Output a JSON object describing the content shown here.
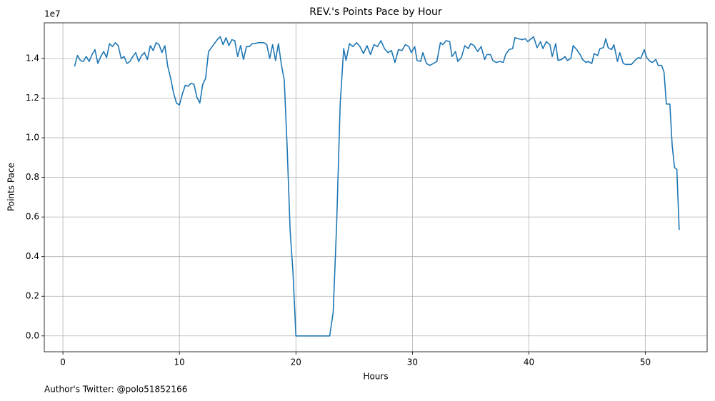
{
  "chart_data": {
    "type": "line",
    "title": "REV.'s Points Pace by Hour",
    "xlabel": "Hours",
    "ylabel": "Points Pace",
    "y_offset_label": "1e7",
    "footnote": "Author's Twitter: @polo51852166",
    "color": "#1f77b4",
    "grid": true,
    "xlim": [
      -1.6,
      55.3
    ],
    "xticks": [
      0,
      10,
      20,
      30,
      40,
      50
    ],
    "ylim": [
      -0.08,
      1.58
    ],
    "yticks": [
      {
        "value": 0,
        "label": "0.0"
      },
      0.2,
      0.4,
      0.6,
      0.8,
      {
        "value": 1,
        "label": "1.0"
      },
      1.2,
      1.4
    ],
    "x": [
      1.0,
      1.25,
      1.5,
      1.75,
      2.0,
      2.25,
      2.5,
      2.75,
      3.0,
      3.25,
      3.5,
      3.75,
      4.0,
      4.25,
      4.5,
      4.75,
      5.0,
      5.25,
      5.5,
      5.75,
      6.0,
      6.25,
      6.5,
      6.75,
      7.0,
      7.25,
      7.5,
      7.75,
      8.0,
      8.25,
      8.5,
      8.75,
      9.0,
      9.25,
      9.5,
      9.75,
      10.0,
      10.25,
      10.5,
      10.75,
      11.0,
      11.25,
      11.5,
      11.75,
      12.0,
      12.25,
      12.5,
      12.75,
      13.0,
      13.25,
      13.5,
      13.75,
      14.0,
      14.25,
      14.5,
      14.75,
      15.0,
      15.25,
      15.5,
      15.75,
      16.0,
      16.25,
      16.5,
      16.75,
      17.0,
      17.25,
      17.5,
      17.75,
      18.0,
      18.25,
      18.5,
      18.75,
      19.0,
      19.25,
      19.5,
      19.75,
      20.0,
      20.5,
      21.0,
      21.5,
      22.0,
      22.5,
      22.9,
      23.2,
      23.5,
      23.8,
      24.1,
      24.3,
      24.6,
      24.9,
      25.2,
      25.5,
      25.8,
      26.1,
      26.4,
      26.7,
      27.0,
      27.3,
      27.6,
      27.9,
      28.2,
      28.5,
      28.8,
      29.1,
      29.4,
      29.7,
      29.9,
      30.2,
      30.4,
      30.7,
      30.9,
      31.2,
      31.5,
      31.8,
      32.1,
      32.4,
      32.6,
      32.9,
      33.2,
      33.4,
      33.7,
      33.9,
      34.2,
      34.5,
      34.8,
      35.0,
      35.3,
      35.6,
      35.9,
      36.2,
      36.4,
      36.7,
      36.9,
      37.2,
      37.5,
      37.8,
      38.0,
      38.3,
      38.6,
      38.8,
      39.1,
      39.4,
      39.7,
      39.9,
      40.2,
      40.4,
      40.7,
      41.0,
      41.2,
      41.5,
      41.8,
      42.0,
      42.3,
      42.5,
      42.8,
      43.1,
      43.3,
      43.6,
      43.8,
      44.1,
      44.4,
      44.6,
      44.9,
      45.1,
      45.4,
      45.6,
      45.9,
      46.1,
      46.4,
      46.6,
      46.8,
      47.1,
      47.3,
      47.6,
      47.8,
      48.1,
      48.3,
      48.6,
      48.8,
      49.1,
      49.4,
      49.6,
      49.9,
      50.1,
      50.4,
      50.6,
      50.9,
      51.1,
      51.4,
      51.6,
      51.8,
      52.1,
      52.3,
      52.5,
      52.7,
      52.9
    ],
    "values": [
      1.36,
      1.415,
      1.39,
      1.385,
      1.41,
      1.385,
      1.42,
      1.445,
      1.375,
      1.41,
      1.435,
      1.405,
      1.475,
      1.46,
      1.48,
      1.465,
      1.4,
      1.41,
      1.375,
      1.385,
      1.41,
      1.43,
      1.385,
      1.415,
      1.43,
      1.395,
      1.465,
      1.44,
      1.48,
      1.47,
      1.43,
      1.465,
      1.36,
      1.3,
      1.225,
      1.175,
      1.165,
      1.22,
      1.265,
      1.26,
      1.275,
      1.27,
      1.205,
      1.175,
      1.27,
      1.3,
      1.435,
      1.455,
      1.475,
      1.495,
      1.51,
      1.47,
      1.505,
      1.465,
      1.495,
      1.49,
      1.41,
      1.465,
      1.395,
      1.46,
      1.46,
      1.475,
      1.475,
      1.48,
      1.48,
      1.48,
      1.47,
      1.4,
      1.47,
      1.39,
      1.475,
      1.37,
      1.29,
      0.95,
      0.535,
      0.32,
      0,
      0,
      0,
      0,
      0,
      0,
      0,
      0.12,
      0.57,
      1.17,
      1.45,
      1.39,
      1.475,
      1.46,
      1.48,
      1.46,
      1.425,
      1.465,
      1.42,
      1.47,
      1.46,
      1.49,
      1.45,
      1.43,
      1.44,
      1.38,
      1.445,
      1.44,
      1.47,
      1.46,
      1.43,
      1.46,
      1.39,
      1.385,
      1.43,
      1.375,
      1.365,
      1.375,
      1.385,
      1.48,
      1.47,
      1.49,
      1.485,
      1.41,
      1.435,
      1.385,
      1.405,
      1.465,
      1.45,
      1.475,
      1.465,
      1.435,
      1.46,
      1.395,
      1.42,
      1.42,
      1.39,
      1.38,
      1.385,
      1.38,
      1.42,
      1.445,
      1.45,
      1.505,
      1.5,
      1.495,
      1.5,
      1.485,
      1.5,
      1.51,
      1.455,
      1.485,
      1.45,
      1.485,
      1.47,
      1.41,
      1.475,
      1.39,
      1.395,
      1.41,
      1.39,
      1.4,
      1.465,
      1.445,
      1.42,
      1.395,
      1.38,
      1.385,
      1.375,
      1.425,
      1.415,
      1.45,
      1.455,
      1.5,
      1.455,
      1.445,
      1.47,
      1.385,
      1.43,
      1.375,
      1.37,
      1.37,
      1.37,
      1.39,
      1.405,
      1.4,
      1.445,
      1.405,
      1.385,
      1.38,
      1.395,
      1.365,
      1.365,
      1.33,
      1.17,
      1.17,
      0.96,
      0.85,
      0.84,
      0.535
    ]
  }
}
